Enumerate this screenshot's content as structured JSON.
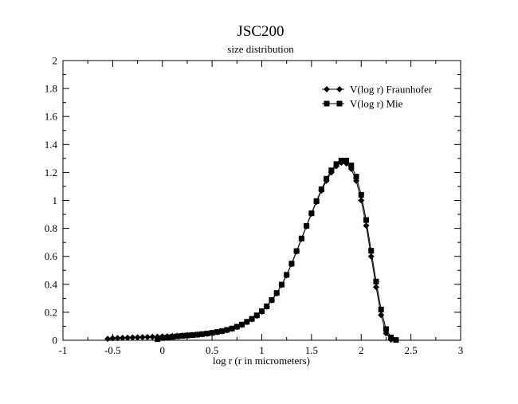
{
  "chart_data": {
    "type": "line",
    "title": "JSC200",
    "subtitle": "size distribution",
    "xlabel": "log r (r in micrometers)",
    "ylabel": "",
    "xlim": [
      -1,
      3
    ],
    "ylim": [
      0,
      2
    ],
    "x_ticks": [
      -1,
      -0.5,
      0,
      0.5,
      1,
      1.5,
      2,
      2.5,
      3
    ],
    "x_tick_labels": [
      "-1",
      "-0.5",
      "0",
      "0.5",
      "1",
      "1.5",
      "2",
      "2.5",
      "3"
    ],
    "y_ticks": [
      0,
      0.2,
      0.4,
      0.6,
      0.8,
      1,
      1.2,
      1.4,
      1.6,
      1.8,
      2
    ],
    "y_tick_labels": [
      "0",
      "0.2",
      "0.4",
      "0.6",
      "0.8",
      "1",
      "1.2",
      "1.4",
      "1.6",
      "1.8",
      "2"
    ],
    "grid": false,
    "legend_position": "top-right",
    "series": [
      {
        "name": "V(log r) Fraunhofer",
        "marker": "diamond",
        "color": "#000000",
        "points": [
          [
            -0.55,
            0.01
          ],
          [
            -0.5,
            0.014
          ],
          [
            -0.45,
            0.016
          ],
          [
            -0.4,
            0.017
          ],
          [
            -0.35,
            0.018
          ],
          [
            -0.3,
            0.02
          ],
          [
            -0.25,
            0.021
          ],
          [
            -0.2,
            0.022
          ],
          [
            -0.15,
            0.023
          ],
          [
            -0.1,
            0.024
          ],
          [
            -0.05,
            0.025
          ],
          [
            0.0,
            0.027
          ],
          [
            0.05,
            0.028
          ],
          [
            0.1,
            0.03
          ],
          [
            0.15,
            0.032
          ],
          [
            0.2,
            0.034
          ],
          [
            0.25,
            0.036
          ],
          [
            0.3,
            0.038
          ],
          [
            0.35,
            0.04
          ],
          [
            0.4,
            0.043
          ],
          [
            0.45,
            0.047
          ],
          [
            0.5,
            0.052
          ],
          [
            0.55,
            0.058
          ],
          [
            0.6,
            0.065
          ],
          [
            0.65,
            0.072
          ],
          [
            0.7,
            0.082
          ],
          [
            0.75,
            0.095
          ],
          [
            0.8,
            0.11
          ],
          [
            0.85,
            0.13
          ],
          [
            0.9,
            0.15
          ],
          [
            0.95,
            0.175
          ],
          [
            1.0,
            0.205
          ],
          [
            1.05,
            0.24
          ],
          [
            1.1,
            0.285
          ],
          [
            1.15,
            0.335
          ],
          [
            1.2,
            0.395
          ],
          [
            1.25,
            0.465
          ],
          [
            1.3,
            0.545
          ],
          [
            1.35,
            0.635
          ],
          [
            1.4,
            0.725
          ],
          [
            1.45,
            0.815
          ],
          [
            1.5,
            0.905
          ],
          [
            1.55,
            0.99
          ],
          [
            1.6,
            1.07
          ],
          [
            1.65,
            1.14
          ],
          [
            1.7,
            1.2
          ],
          [
            1.75,
            1.245
          ],
          [
            1.8,
            1.27
          ],
          [
            1.85,
            1.265
          ],
          [
            1.9,
            1.225
          ],
          [
            1.95,
            1.14
          ],
          [
            2.0,
            1.0
          ],
          [
            2.05,
            0.82
          ],
          [
            2.1,
            0.6
          ],
          [
            2.15,
            0.38
          ],
          [
            2.2,
            0.18
          ],
          [
            2.25,
            0.05
          ],
          [
            2.3,
            0.004
          ]
        ]
      },
      {
        "name": "V(log r) Mie",
        "marker": "square",
        "color": "#000000",
        "points": [
          [
            -0.05,
            0.008
          ],
          [
            0.0,
            0.016
          ],
          [
            0.05,
            0.02
          ],
          [
            0.1,
            0.024
          ],
          [
            0.15,
            0.028
          ],
          [
            0.2,
            0.031
          ],
          [
            0.25,
            0.034
          ],
          [
            0.3,
            0.037
          ],
          [
            0.35,
            0.04
          ],
          [
            0.4,
            0.044
          ],
          [
            0.45,
            0.048
          ],
          [
            0.5,
            0.053
          ],
          [
            0.55,
            0.059
          ],
          [
            0.6,
            0.066
          ],
          [
            0.65,
            0.074
          ],
          [
            0.7,
            0.084
          ],
          [
            0.75,
            0.097
          ],
          [
            0.8,
            0.112
          ],
          [
            0.85,
            0.132
          ],
          [
            0.9,
            0.153
          ],
          [
            0.95,
            0.178
          ],
          [
            1.0,
            0.208
          ],
          [
            1.05,
            0.243
          ],
          [
            1.1,
            0.288
          ],
          [
            1.15,
            0.338
          ],
          [
            1.2,
            0.398
          ],
          [
            1.25,
            0.468
          ],
          [
            1.3,
            0.548
          ],
          [
            1.35,
            0.638
          ],
          [
            1.4,
            0.728
          ],
          [
            1.45,
            0.818
          ],
          [
            1.5,
            0.908
          ],
          [
            1.55,
            0.995
          ],
          [
            1.6,
            1.08
          ],
          [
            1.65,
            1.155
          ],
          [
            1.7,
            1.215
          ],
          [
            1.75,
            1.26
          ],
          [
            1.8,
            1.285
          ],
          [
            1.85,
            1.285
          ],
          [
            1.9,
            1.25
          ],
          [
            1.95,
            1.17
          ],
          [
            2.0,
            1.04
          ],
          [
            2.05,
            0.86
          ],
          [
            2.1,
            0.64
          ],
          [
            2.15,
            0.42
          ],
          [
            2.2,
            0.22
          ],
          [
            2.25,
            0.08
          ],
          [
            2.3,
            0.02
          ],
          [
            2.35,
            0.002
          ]
        ]
      }
    ]
  }
}
